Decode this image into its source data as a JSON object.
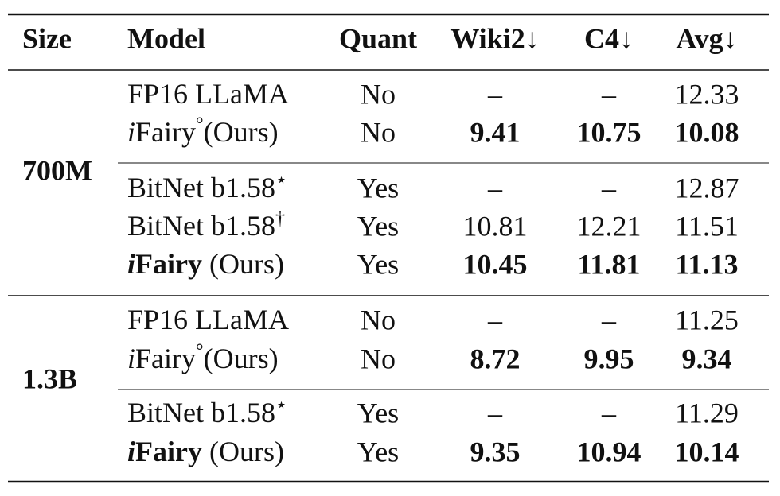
{
  "header": [
    "Size",
    "Model",
    "Quant",
    "Wiki2↓",
    "C4↓",
    "Avg↓"
  ],
  "groups": [
    {
      "size": "700M",
      "blocks": [
        [
          {
            "model": [
              "FP16 LLaMA"
            ],
            "quant": "No",
            "wiki2": "–",
            "c4": "–",
            "avg": "12.33"
          },
          {
            "model": [
              "i",
              "Fairy",
              "°",
              "(Ours)"
            ],
            "quant": "No",
            "wiki2": "9.41",
            "c4": "10.75",
            "avg": "10.08"
          }
        ],
        [
          {
            "model": [
              "BitNet b1.58",
              "⋆"
            ],
            "quant": "Yes",
            "wiki2": "–",
            "c4": "–",
            "avg": "12.87"
          },
          {
            "model": [
              "BitNet b1.58",
              "†"
            ],
            "quant": "Yes",
            "wiki2": "10.81",
            "c4": "12.21",
            "avg": "11.51"
          },
          {
            "model": [
              "i",
              "Fairy",
              " (Ours)"
            ],
            "quant": "Yes",
            "wiki2": "10.45",
            "c4": "11.81",
            "avg": "11.13"
          }
        ]
      ]
    },
    {
      "size": "1.3B",
      "blocks": [
        [
          {
            "model": [
              "FP16 LLaMA"
            ],
            "quant": "No",
            "wiki2": "–",
            "c4": "–",
            "avg": "11.25"
          },
          {
            "model": [
              "i",
              "Fairy",
              "°",
              "(Ours)"
            ],
            "quant": "No",
            "wiki2": "8.72",
            "c4": "9.95",
            "avg": "9.34"
          }
        ],
        [
          {
            "model": [
              "BitNet b1.58",
              "⋆"
            ],
            "quant": "Yes",
            "wiki2": "–",
            "c4": "–",
            "avg": "11.29"
          },
          {
            "model": [
              "i",
              "Fairy",
              " (Ours)"
            ],
            "quant": "Yes",
            "wiki2": "9.35",
            "c4": "10.94",
            "avg": "10.14"
          }
        ]
      ]
    }
  ]
}
